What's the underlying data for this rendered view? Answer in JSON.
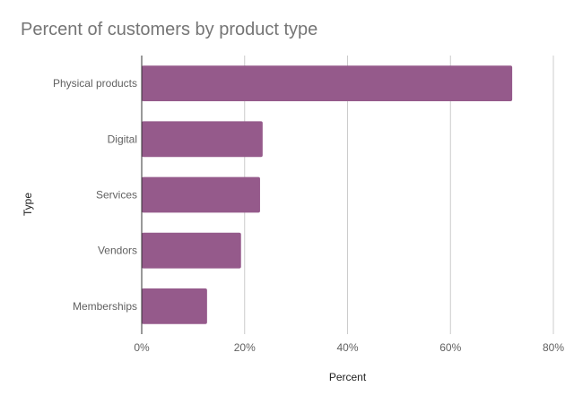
{
  "chart_data": {
    "type": "bar",
    "orientation": "horizontal",
    "title": "Percent of customers by product type",
    "xlabel": "Percent",
    "ylabel": "Type",
    "categories": [
      "Physical products",
      "Digital",
      "Services",
      "Vendors",
      "Memberships"
    ],
    "values": [
      72,
      23.5,
      23,
      19.3,
      12.7
    ],
    "xlim": [
      0,
      80
    ],
    "xticks": [
      "0%",
      "20%",
      "40%",
      "60%",
      "80%"
    ],
    "grid": true,
    "legend": "none",
    "bar_color": "#955a8b"
  }
}
